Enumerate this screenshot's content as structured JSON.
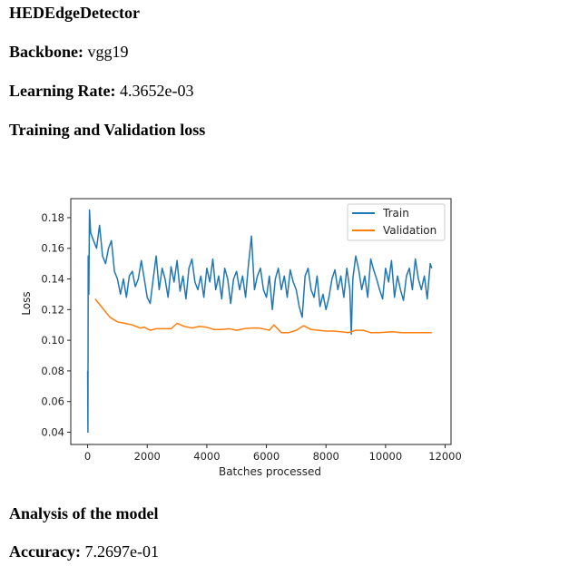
{
  "model_name": "HEDEdgeDetector",
  "backbone": {
    "label": "Backbone:",
    "value": "vgg19"
  },
  "learning_rate": {
    "label": "Learning Rate:",
    "value": "4.3652e-03"
  },
  "loss_heading": "Training and Validation loss",
  "analysis_heading": "Analysis of the model",
  "accuracy": {
    "label": "Accuracy:",
    "value": "7.2697e-01"
  },
  "chart_data": {
    "type": "line",
    "title": "",
    "xlabel": "Batches processed",
    "ylabel": "Loss",
    "xlim": [
      -566,
      12197
    ],
    "ylim": [
      0.032,
      0.1924
    ],
    "xticks": [
      "0",
      "2000",
      "4000",
      "6000",
      "8000",
      "10000",
      "12000"
    ],
    "yticks": [
      "0.04",
      "0.06",
      "0.08",
      "0.10",
      "0.12",
      "0.14",
      "0.16",
      "0.18"
    ],
    "grid": false,
    "legend_position": "top-right",
    "series": [
      {
        "name": "Train",
        "color": "#1f77b4",
        "x": [
          0,
          10,
          20,
          40,
          60,
          100,
          200,
          300,
          400,
          500,
          600,
          700,
          800,
          900,
          1000,
          1100,
          1200,
          1300,
          1400,
          1500,
          1600,
          1700,
          1800,
          1900,
          2000,
          2100,
          2200,
          2300,
          2400,
          2500,
          2600,
          2700,
          2800,
          2900,
          3000,
          3100,
          3200,
          3300,
          3400,
          3500,
          3600,
          3700,
          3800,
          3900,
          4000,
          4100,
          4200,
          4300,
          4400,
          4500,
          4600,
          4700,
          4800,
          4900,
          5000,
          5100,
          5200,
          5300,
          5400,
          5500,
          5600,
          5700,
          5800,
          5900,
          6000,
          6100,
          6200,
          6300,
          6400,
          6500,
          6600,
          6700,
          6800,
          6900,
          7000,
          7100,
          7200,
          7300,
          7400,
          7500,
          7600,
          7700,
          7800,
          7900,
          8000,
          8100,
          8200,
          8300,
          8400,
          8500,
          8600,
          8700,
          8800,
          8850,
          8900,
          9000,
          9100,
          9200,
          9300,
          9400,
          9500,
          9600,
          9700,
          9800,
          9900,
          10000,
          10100,
          10200,
          10300,
          10400,
          10500,
          10600,
          10700,
          10800,
          10900,
          11000,
          11100,
          11200,
          11300,
          11400,
          11500,
          11550
        ],
        "y": [
          0.08,
          0.04,
          0.155,
          0.13,
          0.185,
          0.17,
          0.165,
          0.16,
          0.175,
          0.155,
          0.15,
          0.16,
          0.165,
          0.145,
          0.14,
          0.13,
          0.14,
          0.128,
          0.142,
          0.145,
          0.135,
          0.14,
          0.152,
          0.14,
          0.128,
          0.124,
          0.14,
          0.155,
          0.133,
          0.147,
          0.14,
          0.128,
          0.148,
          0.138,
          0.152,
          0.132,
          0.142,
          0.127,
          0.147,
          0.153,
          0.138,
          0.133,
          0.142,
          0.128,
          0.147,
          0.138,
          0.153,
          0.133,
          0.142,
          0.127,
          0.147,
          0.14,
          0.124,
          0.14,
          0.145,
          0.133,
          0.142,
          0.128,
          0.15,
          0.168,
          0.133,
          0.142,
          0.147,
          0.133,
          0.128,
          0.142,
          0.12,
          0.14,
          0.147,
          0.133,
          0.142,
          0.128,
          0.146,
          0.138,
          0.133,
          0.122,
          0.115,
          0.142,
          0.147,
          0.133,
          0.128,
          0.142,
          0.122,
          0.13,
          0.12,
          0.128,
          0.14,
          0.146,
          0.133,
          0.142,
          0.128,
          0.147,
          0.133,
          0.104,
          0.14,
          0.155,
          0.146,
          0.133,
          0.142,
          0.128,
          0.153,
          0.146,
          0.14,
          0.133,
          0.127,
          0.147,
          0.138,
          0.152,
          0.128,
          0.142,
          0.133,
          0.126,
          0.142,
          0.147,
          0.133,
          0.153,
          0.14,
          0.133,
          0.142,
          0.127,
          0.15,
          0.147
        ]
      },
      {
        "name": "Validation",
        "color": "#ff7f0e",
        "x": [
          250,
          500,
          750,
          1000,
          1250,
          1500,
          1750,
          1900,
          2100,
          2300,
          2600,
          2800,
          3000,
          3250,
          3500,
          3750,
          4000,
          4250,
          4500,
          4750,
          5000,
          5250,
          5500,
          5750,
          6000,
          6100,
          6250,
          6500,
          6750,
          7000,
          7250,
          7500,
          7750,
          8000,
          8250,
          8500,
          8750,
          9000,
          9250,
          9500,
          9750,
          10000,
          10250,
          10500,
          10750,
          11000,
          11250,
          11550
        ],
        "y": [
          0.127,
          0.121,
          0.115,
          0.112,
          0.111,
          0.11,
          0.108,
          0.1085,
          0.1065,
          0.1075,
          0.1075,
          0.1075,
          0.111,
          0.109,
          0.108,
          0.109,
          0.1085,
          0.107,
          0.107,
          0.1075,
          0.1065,
          0.1075,
          0.108,
          0.108,
          0.107,
          0.1065,
          0.11,
          0.105,
          0.105,
          0.1065,
          0.1095,
          0.107,
          0.1065,
          0.106,
          0.106,
          0.1055,
          0.105,
          0.1065,
          0.1065,
          0.105,
          0.105,
          0.1052,
          0.1055,
          0.105,
          0.105,
          0.105,
          0.105,
          0.105
        ]
      }
    ]
  }
}
